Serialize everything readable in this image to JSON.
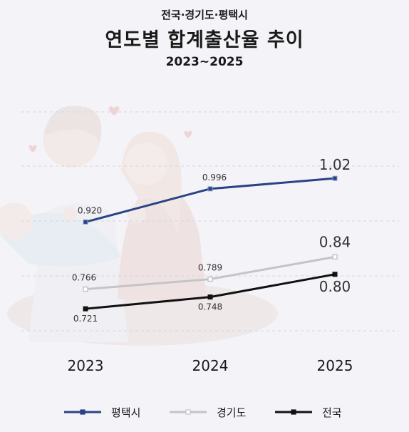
{
  "header": {
    "subtitle": "전국·경기도·평택시",
    "title": "연도별 합계출산율 추이",
    "period": "2023~2025"
  },
  "chart_data": {
    "type": "line",
    "title": "연도별 합계출산율 추이",
    "subtitle": "전국·경기도·평택시",
    "categories": [
      "2023",
      "2024",
      "2025"
    ],
    "ylim": [
      0.62,
      1.2
    ],
    "grid": true,
    "legend_position": "bottom",
    "series": [
      {
        "name": "평택시",
        "color": "#2a4384",
        "values": [
          0.92,
          0.996,
          1.02
        ],
        "labels": [
          "0.920",
          "0.996",
          "1.02"
        ]
      },
      {
        "name": "경기도",
        "color": "#c4c4c8",
        "values": [
          0.766,
          0.789,
          0.84
        ],
        "labels": [
          "0.766",
          "0.789",
          "0.84"
        ]
      },
      {
        "name": "전국",
        "color": "#111111",
        "values": [
          0.721,
          0.748,
          0.8
        ],
        "labels": [
          "0.721",
          "0.748",
          "0.80"
        ]
      }
    ]
  }
}
